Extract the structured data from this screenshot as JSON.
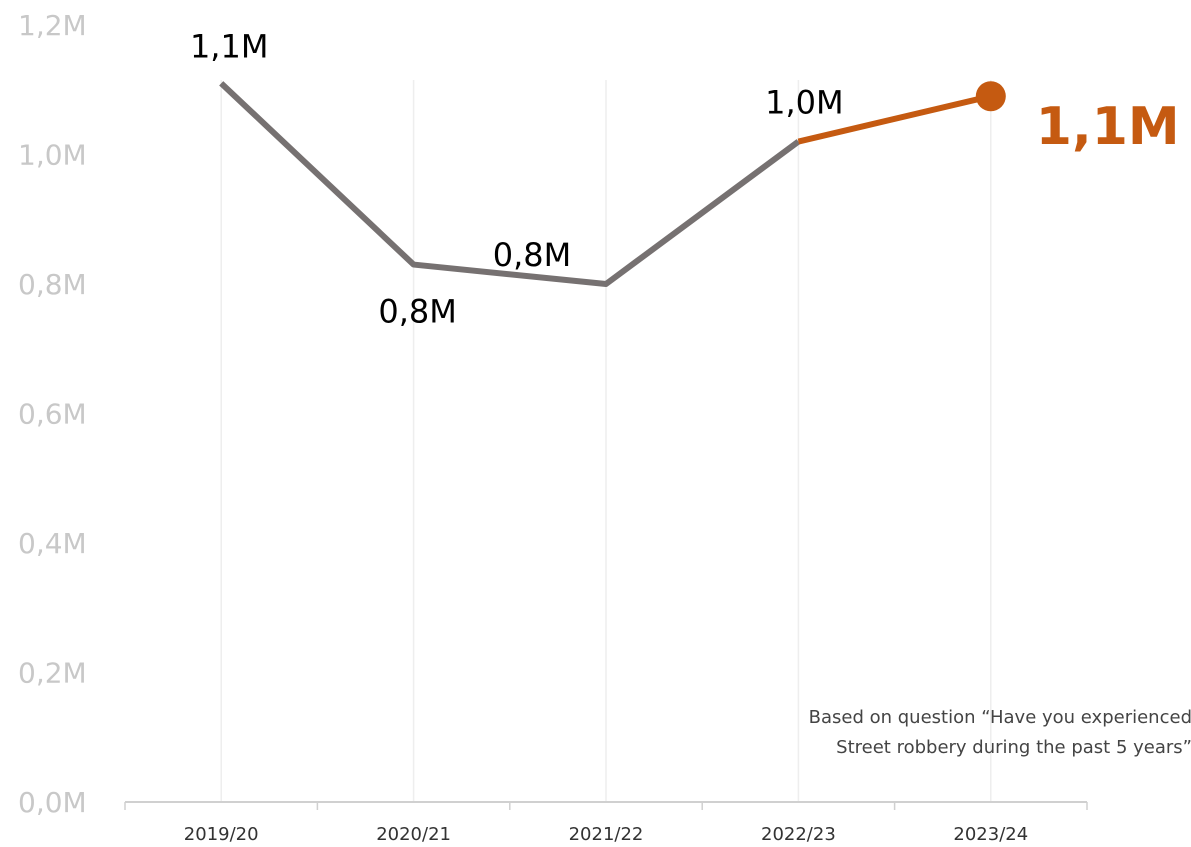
{
  "chart_data": {
    "type": "line",
    "categories": [
      "2019/20",
      "2020/21",
      "2021/22",
      "2022/23",
      "2023/24"
    ],
    "series": [
      {
        "values": [
          1.11,
          0.83,
          0.8,
          1.02,
          1.09
        ],
        "labels": [
          "1,1M",
          "0,8M",
          "0,8M",
          "1,0M",
          "1,1M"
        ],
        "color": "#767171",
        "highlight_color": "#c55a11"
      }
    ],
    "ylim": [
      0,
      1.2
    ],
    "yticks": [
      0,
      0.2,
      0.4,
      0.6,
      0.8,
      1.0,
      1.2
    ],
    "ytick_labels": [
      "0,0M",
      "0,2M",
      "0,4M",
      "0,6M",
      "0,8M",
      "1,0M",
      "1,2M"
    ],
    "grid": "vertical",
    "title": "",
    "xlabel": "",
    "ylabel": "",
    "annotation": {
      "lines": [
        "Based on question “Have you experienced",
        "Street robbery during the past 5 years”"
      ]
    }
  }
}
